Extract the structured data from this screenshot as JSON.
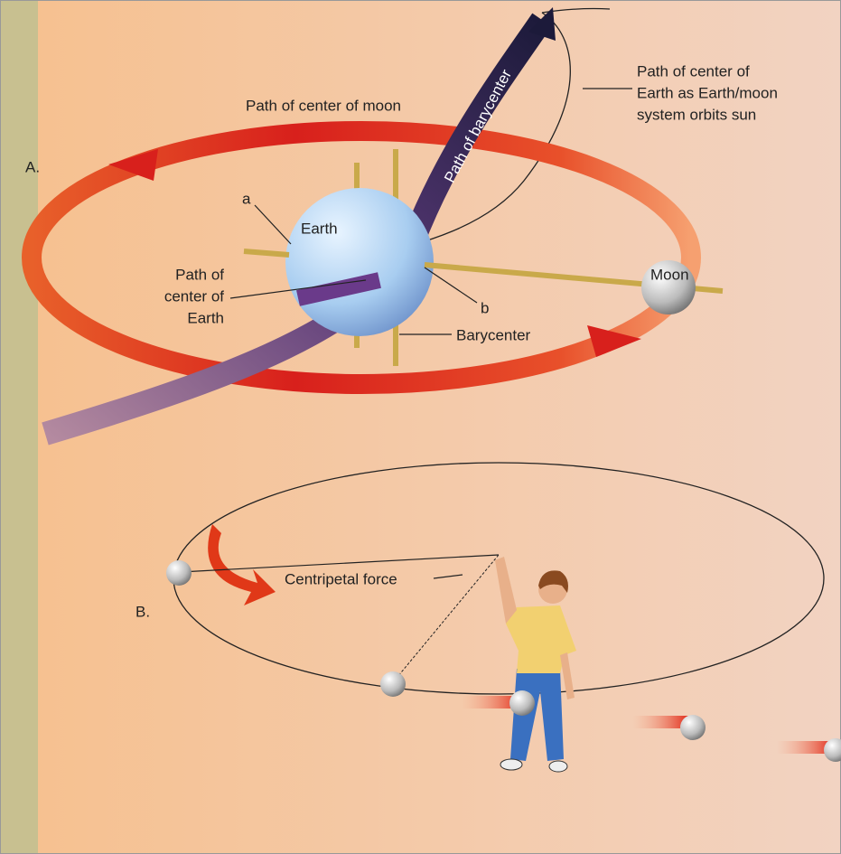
{
  "part_a": {
    "label": "A.",
    "moon_path": "Path of center of moon",
    "barycenter_path": "Path of barycenter",
    "sun_orbit": [
      "Path of center of",
      "Earth as Earth/moon",
      "system orbits sun"
    ],
    "point_a": "a",
    "earth": "Earth",
    "earth_path": [
      "Path of",
      "center of",
      "Earth"
    ],
    "point_b": "b",
    "moon": "Moon",
    "barycenter": "Barycenter"
  },
  "part_b": {
    "label": "B.",
    "force": "Centripetal force"
  }
}
